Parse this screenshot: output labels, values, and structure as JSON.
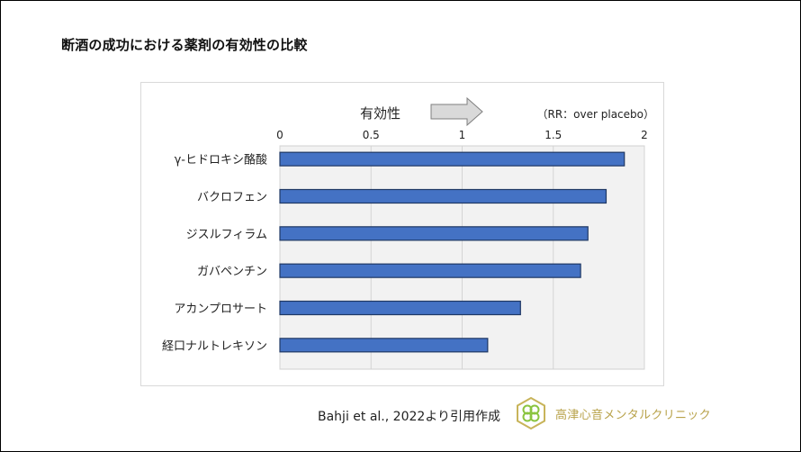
{
  "slide": {
    "title": "断酒の成功における薬剤の有効性の比較",
    "citation": "Bahji et al., 2022より引用作成",
    "clinic_name": "高津心音メンタルクリニック"
  },
  "colors": {
    "bar_fill": "#4472c4",
    "bar_stroke": "#1f3864",
    "plot_bg": "#f2f2f2",
    "arrow_fill": "#d9d9d9",
    "arrow_stroke": "#7f7f7f",
    "logo_gold": "#c8b45a",
    "logo_green": "#8ac43f"
  },
  "chart_data": {
    "type": "bar",
    "orientation": "horizontal",
    "title": "",
    "arrow_label": "有効性",
    "unit_label": "（RR：over placebo）",
    "categories": [
      "γ-ヒドロキシ酪酸",
      "バクロフェン",
      "ジスルフィラム",
      "ガバペンチン",
      "アカンプロサート",
      "経口ナルトレキソン"
    ],
    "values": [
      1.89,
      1.79,
      1.69,
      1.65,
      1.32,
      1.14
    ],
    "xlim": [
      0,
      2
    ],
    "xticks": [
      0,
      0.5,
      1,
      1.5,
      2
    ],
    "xtick_labels": [
      "0",
      "0.5",
      "1",
      "1.5",
      "2"
    ],
    "grid": "vertical",
    "xlabel": "",
    "ylabel": ""
  }
}
